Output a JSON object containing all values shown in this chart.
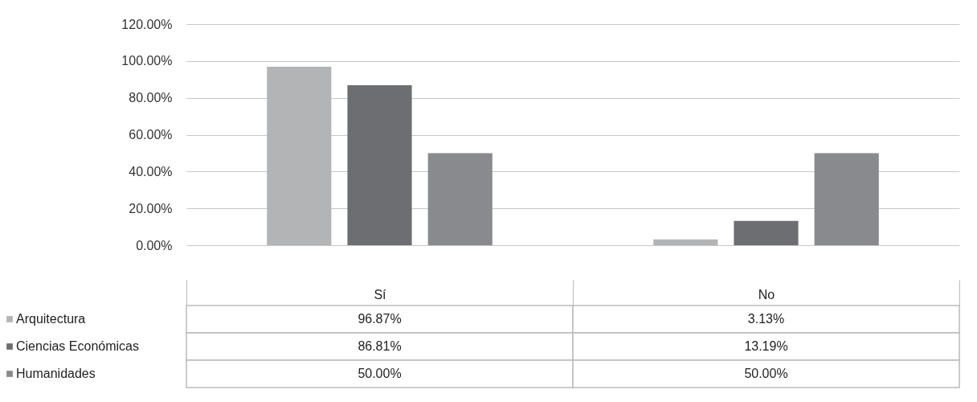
{
  "chart_data": {
    "type": "bar",
    "categories": [
      "Sí",
      "No"
    ],
    "series": [
      {
        "name": "Arquitectura",
        "color": "#b3b4b6",
        "values": [
          96.87,
          3.13
        ],
        "value_labels": [
          "96.87%",
          "3.13%"
        ]
      },
      {
        "name": "Ciencias Económicas",
        "color": "#6d6e71",
        "values": [
          86.81,
          13.19
        ],
        "value_labels": [
          "86.81%",
          "13.19%"
        ]
      },
      {
        "name": "Humanidades",
        "color": "#898a8d",
        "values": [
          50.0,
          50.0
        ],
        "value_labels": [
          "50.00%",
          "50.00%"
        ]
      }
    ],
    "ylim": [
      0,
      120
    ],
    "yticks": [
      {
        "value": 0,
        "label": "0.00%"
      },
      {
        "value": 20,
        "label": "20.00%"
      },
      {
        "value": 40,
        "label": "40.00%"
      },
      {
        "value": 60,
        "label": "60.00%"
      },
      {
        "value": 80,
        "label": "80.00%"
      },
      {
        "value": 100,
        "label": "100.00%"
      },
      {
        "value": 120,
        "label": "120.00%"
      }
    ],
    "grid": "y",
    "legend": "bottom left"
  }
}
